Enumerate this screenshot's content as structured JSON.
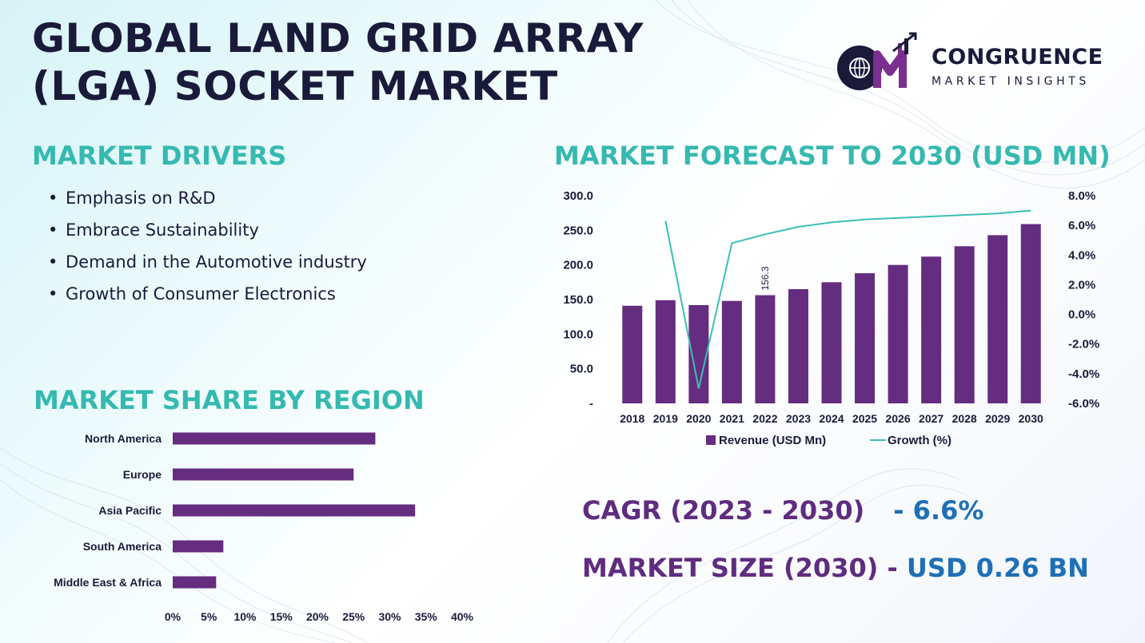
{
  "title_line1": "GLOBAL LAND GRID ARRAY",
  "title_line2": "(LGA) SOCKET MARKET",
  "logo": {
    "name": "CONGRUENCE",
    "tagline": "MARKET INSIGHTS",
    "colors": {
      "dark": "#1a1a3a",
      "purple": "#7b2f8e"
    }
  },
  "drivers": {
    "heading": "MARKET DRIVERS",
    "items": [
      "Emphasis on R&D",
      "Embrace Sustainability",
      "Demand in the Automotive industry",
      "Growth of Consumer Electronics"
    ]
  },
  "forecast": {
    "heading": "MARKET FORECAST TO 2030 (USD MN)"
  },
  "region": {
    "heading": "MARKET SHARE BY REGION"
  },
  "stats": {
    "cagr_label": "CAGR (2023 - 2030)",
    "cagr_value": "- 6.6%",
    "size_label": "MARKET SIZE (2030) -",
    "size_value": "USD 0.26 BN"
  },
  "colors": {
    "teal": "#35b9b0",
    "bar": "#652d80",
    "line": "#3bbfb5",
    "dark": "#1a1a3a",
    "blue": "#1f6fb5"
  },
  "chart_data": [
    {
      "type": "bar",
      "categories": [
        "2018",
        "2019",
        "2020",
        "2021",
        "2022",
        "2023",
        "2024",
        "2025",
        "2026",
        "2027",
        "2028",
        "2029",
        "2030"
      ],
      "series": [
        {
          "name": "Revenue (USD Mn)",
          "type": "bar",
          "axis": "left",
          "values": [
            141,
            149,
            142,
            148,
            156.3,
            165,
            175,
            188,
            200,
            212,
            227,
            243,
            259
          ]
        },
        {
          "name": "Growth (%)",
          "type": "line",
          "axis": "right",
          "values": [
            null,
            6.3,
            -5.0,
            4.8,
            5.4,
            5.9,
            6.2,
            6.4,
            6.5,
            6.6,
            6.7,
            6.8,
            7.0
          ]
        }
      ],
      "annotations": [
        {
          "category": "2022",
          "text": "156.3"
        }
      ],
      "left_ticks": [
        "-",
        "50.0",
        "100.0",
        "150.0",
        "200.0",
        "250.0",
        "300.0"
      ],
      "right_ticks": [
        "-6.0%",
        "-4.0%",
        "-2.0%",
        "0.0%",
        "2.0%",
        "4.0%",
        "6.0%",
        "8.0%"
      ],
      "ylim": [
        0,
        300
      ],
      "y2lim": [
        -6,
        8
      ],
      "legend_position": "bottom",
      "grid": false
    },
    {
      "type": "bar",
      "orientation": "horizontal",
      "categories": [
        "North America",
        "Europe",
        "Asia Pacific",
        "South America",
        "Middle East & Africa"
      ],
      "values": [
        28,
        25,
        33.5,
        7,
        6
      ],
      "x_ticks": [
        "0%",
        "5%",
        "10%",
        "15%",
        "20%",
        "25%",
        "30%",
        "35%",
        "40%"
      ],
      "xlim": [
        0,
        40
      ],
      "grid": false
    }
  ]
}
